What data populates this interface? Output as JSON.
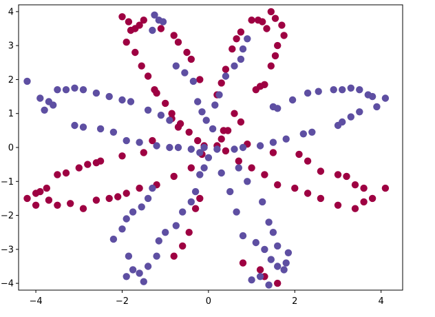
{
  "chart_data": {
    "type": "scatter",
    "title": "",
    "xlabel": "",
    "ylabel": "",
    "xlim": [
      -4.4,
      4.5
    ],
    "ylim": [
      -4.2,
      4.2
    ],
    "xticks": [
      -4,
      -2,
      0,
      2,
      4
    ],
    "yticks": [
      -4,
      -3,
      -2,
      -1,
      0,
      1,
      2,
      3,
      4
    ],
    "xtick_labels": [
      "−4",
      "−2",
      "0",
      "2",
      "4"
    ],
    "ytick_labels": [
      "−4",
      "−3",
      "−2",
      "−1",
      "0",
      "1",
      "2",
      "3",
      "4"
    ],
    "grid": false,
    "legend": "none",
    "colors": {
      "class_0": "#9e0142",
      "class_1": "#5e4fa2"
    },
    "series": [
      {
        "color_key": "class_0",
        "points": [
          [
            -2.0,
            3.85
          ],
          [
            -1.85,
            3.7
          ],
          [
            -1.8,
            3.45
          ],
          [
            -1.7,
            3.5
          ],
          [
            -1.6,
            3.6
          ],
          [
            -1.5,
            3.75
          ],
          [
            -1.9,
            3.1
          ],
          [
            -1.7,
            2.8
          ],
          [
            -1.55,
            2.4
          ],
          [
            -1.4,
            2.1
          ],
          [
            -1.25,
            1.7
          ],
          [
            -1.2,
            1.6
          ],
          [
            -1.0,
            1.3
          ],
          [
            -0.85,
            1.0
          ],
          [
            -0.65,
            0.7
          ],
          [
            -0.45,
            0.45
          ],
          [
            -0.25,
            0.2
          ],
          [
            -0.1,
            0.05
          ],
          [
            -1.1,
            3.5
          ],
          [
            -0.8,
            3.3
          ],
          [
            -0.7,
            3.1
          ],
          [
            -0.5,
            2.8
          ],
          [
            -0.4,
            2.6
          ],
          [
            -0.2,
            2.0
          ],
          [
            1.0,
            3.75
          ],
          [
            1.15,
            3.75
          ],
          [
            1.25,
            3.7
          ],
          [
            1.35,
            3.5
          ],
          [
            1.45,
            4.0
          ],
          [
            1.55,
            3.8
          ],
          [
            1.7,
            3.6
          ],
          [
            1.75,
            3.3
          ],
          [
            1.6,
            3.0
          ],
          [
            1.55,
            2.7
          ],
          [
            1.45,
            2.4
          ],
          [
            1.3,
            1.85
          ],
          [
            1.2,
            1.8
          ],
          [
            1.1,
            1.7
          ],
          [
            0.75,
            3.4
          ],
          [
            0.65,
            3.2
          ],
          [
            0.55,
            2.9
          ],
          [
            0.4,
            2.3
          ],
          [
            0.3,
            1.9
          ],
          [
            0.2,
            1.55
          ],
          [
            0.6,
            1.0
          ],
          [
            0.75,
            0.75
          ],
          [
            0.45,
            0.5
          ],
          [
            0.3,
            0.25
          ],
          [
            -0.85,
            0.85
          ],
          [
            -0.7,
            0.6
          ],
          [
            -1.3,
            0.2
          ],
          [
            -1.5,
            -0.15
          ],
          [
            -2.0,
            -0.25
          ],
          [
            -2.5,
            -0.4
          ],
          [
            -3.0,
            -0.6
          ],
          [
            -3.3,
            -0.75
          ],
          [
            -3.5,
            -0.8
          ],
          [
            -2.8,
            -0.5
          ],
          [
            -2.6,
            -0.45
          ],
          [
            -3.75,
            -1.2
          ],
          [
            -3.9,
            -1.3
          ],
          [
            -4.0,
            -1.35
          ],
          [
            -4.2,
            -1.5
          ],
          [
            -4.0,
            -1.7
          ],
          [
            -3.7,
            -1.55
          ],
          [
            -3.5,
            -1.7
          ],
          [
            -3.2,
            -1.65
          ],
          [
            -2.9,
            -1.8
          ],
          [
            -2.6,
            -1.55
          ],
          [
            -2.3,
            -1.5
          ],
          [
            -2.1,
            -1.45
          ],
          [
            -1.9,
            -1.35
          ],
          [
            -1.6,
            -1.2
          ],
          [
            -1.2,
            -1.1
          ],
          [
            -0.8,
            -0.85
          ],
          [
            -0.4,
            -0.6
          ],
          [
            -0.15,
            -0.2
          ],
          [
            0.2,
            0.05
          ],
          [
            0.4,
            -0.1
          ],
          [
            0.7,
            -0.4
          ],
          [
            1.0,
            -0.6
          ],
          [
            1.3,
            -0.8
          ],
          [
            1.6,
            -1.1
          ],
          [
            2.0,
            -1.2
          ],
          [
            2.3,
            -1.35
          ],
          [
            2.6,
            -1.5
          ],
          [
            3.0,
            -1.7
          ],
          [
            3.4,
            -1.8
          ],
          [
            3.6,
            -1.6
          ],
          [
            3.8,
            -1.5
          ],
          [
            4.1,
            -1.2
          ],
          [
            3.6,
            -1.2
          ],
          [
            3.4,
            -1.1
          ],
          [
            3.2,
            -0.85
          ],
          [
            3.0,
            -0.8
          ],
          [
            2.6,
            -0.7
          ],
          [
            2.3,
            -0.4
          ],
          [
            2.1,
            -0.2
          ],
          [
            1.5,
            -0.15
          ],
          [
            0.9,
            0.1
          ],
          [
            0.35,
            0.5
          ],
          [
            -0.2,
            -1.5
          ],
          [
            -0.3,
            -1.8
          ],
          [
            -0.45,
            -2.5
          ],
          [
            -0.6,
            -2.9
          ],
          [
            -0.8,
            -3.2
          ],
          [
            1.2,
            -3.6
          ],
          [
            1.3,
            -3.8
          ],
          [
            1.6,
            -4.0
          ],
          [
            0.8,
            -3.4
          ]
        ]
      },
      {
        "color_key": "class_1",
        "points": [
          [
            -4.2,
            1.95
          ],
          [
            -3.9,
            1.45
          ],
          [
            -3.7,
            1.35
          ],
          [
            -3.6,
            1.25
          ],
          [
            -3.8,
            1.1
          ],
          [
            -3.5,
            1.7
          ],
          [
            -3.3,
            1.7
          ],
          [
            -3.1,
            1.75
          ],
          [
            -2.9,
            1.7
          ],
          [
            -2.6,
            1.6
          ],
          [
            -2.3,
            1.5
          ],
          [
            -2.0,
            1.4
          ],
          [
            -1.8,
            1.35
          ],
          [
            -1.4,
            1.1
          ],
          [
            -1.1,
            0.95
          ],
          [
            -0.9,
            0.8
          ],
          [
            -3.1,
            0.65
          ],
          [
            -2.9,
            0.6
          ],
          [
            -2.5,
            0.55
          ],
          [
            -2.2,
            0.45
          ],
          [
            -1.9,
            0.2
          ],
          [
            -1.6,
            0.15
          ],
          [
            -1.2,
            0.05
          ],
          [
            -0.9,
            0.0
          ],
          [
            -0.7,
            0.0
          ],
          [
            -0.4,
            -0.05
          ],
          [
            -0.2,
            -0.15
          ],
          [
            -1.25,
            3.9
          ],
          [
            -1.15,
            3.75
          ],
          [
            -1.05,
            3.7
          ],
          [
            -1.3,
            3.45
          ],
          [
            -0.75,
            2.4
          ],
          [
            -0.55,
            2.2
          ],
          [
            -0.35,
            1.95
          ],
          [
            -0.25,
            1.35
          ],
          [
            -0.15,
            1.05
          ],
          [
            -0.05,
            0.8
          ],
          [
            0.1,
            0.55
          ],
          [
            0.15,
            1.25
          ],
          [
            0.25,
            1.55
          ],
          [
            0.4,
            2.1
          ],
          [
            0.6,
            2.4
          ],
          [
            0.75,
            2.6
          ],
          [
            0.8,
            2.9
          ],
          [
            0.9,
            3.2
          ],
          [
            1.5,
            1.2
          ],
          [
            1.6,
            1.15
          ],
          [
            1.95,
            1.4
          ],
          [
            2.3,
            1.6
          ],
          [
            2.55,
            1.65
          ],
          [
            2.9,
            1.7
          ],
          [
            3.1,
            1.7
          ],
          [
            3.3,
            1.75
          ],
          [
            3.5,
            1.7
          ],
          [
            3.7,
            1.55
          ],
          [
            3.8,
            1.5
          ],
          [
            4.1,
            1.45
          ],
          [
            3.9,
            1.2
          ],
          [
            3.5,
            1.05
          ],
          [
            3.3,
            0.9
          ],
          [
            3.1,
            0.75
          ],
          [
            3.0,
            0.65
          ],
          [
            2.4,
            0.45
          ],
          [
            2.2,
            0.4
          ],
          [
            1.8,
            0.25
          ],
          [
            1.5,
            0.15
          ],
          [
            1.2,
            0.05
          ],
          [
            0.8,
            0.0
          ],
          [
            0.6,
            -0.05
          ],
          [
            0.2,
            -0.05
          ],
          [
            -0.1,
            0.0
          ],
          [
            0.0,
            -0.3
          ],
          [
            -0.1,
            -0.6
          ],
          [
            -0.2,
            -0.8
          ],
          [
            -0.3,
            -1.3
          ],
          [
            -0.4,
            -1.6
          ],
          [
            -0.6,
            -1.9
          ],
          [
            -0.75,
            -2.3
          ],
          [
            -1.0,
            -2.5
          ],
          [
            -1.15,
            -2.75
          ],
          [
            -1.2,
            -3.2
          ],
          [
            -1.4,
            -3.5
          ],
          [
            -1.6,
            -3.7
          ],
          [
            -1.75,
            -3.6
          ],
          [
            -1.85,
            -3.2
          ],
          [
            -1.5,
            -3.95
          ],
          [
            -1.9,
            -3.8
          ],
          [
            -1.4,
            -1.5
          ],
          [
            -1.55,
            -1.75
          ],
          [
            -1.75,
            -1.9
          ],
          [
            -1.9,
            -2.1
          ],
          [
            -2.0,
            -2.4
          ],
          [
            -2.2,
            -2.7
          ],
          [
            -1.3,
            -1.2
          ],
          [
            0.3,
            -0.75
          ],
          [
            0.5,
            -1.3
          ],
          [
            0.65,
            -1.9
          ],
          [
            0.8,
            -2.6
          ],
          [
            1.1,
            -2.8
          ],
          [
            1.3,
            -3.0
          ],
          [
            1.45,
            -3.3
          ],
          [
            1.6,
            -3.5
          ],
          [
            1.75,
            -3.6
          ],
          [
            1.8,
            -3.4
          ],
          [
            1.85,
            -3.1
          ],
          [
            1.6,
            -2.9
          ],
          [
            1.5,
            -2.5
          ],
          [
            1.4,
            -2.2
          ],
          [
            1.25,
            -1.6
          ],
          [
            0.9,
            -1.0
          ],
          [
            0.7,
            -0.6
          ],
          [
            1.2,
            -3.8
          ],
          [
            1.0,
            -3.9
          ],
          [
            1.4,
            -4.05
          ]
        ]
      }
    ]
  }
}
